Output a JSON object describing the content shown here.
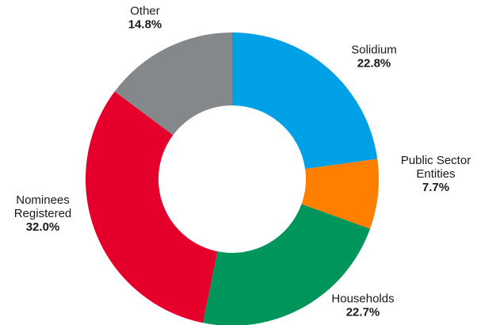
{
  "chart_data": {
    "type": "pie",
    "donut": true,
    "title": "",
    "legend": "none",
    "slices": [
      {
        "name": "Solidium",
        "name_lines": [
          "Solidium"
        ],
        "value": 22.8,
        "value_label": "22.8%",
        "color": "#00a0e6"
      },
      {
        "name": "Public Sector Entities",
        "name_lines": [
          "Public Sector",
          "Entities"
        ],
        "value": 7.7,
        "value_label": "7.7%",
        "color": "#ff7f00"
      },
      {
        "name": "Households",
        "name_lines": [
          "Households"
        ],
        "value": 22.7,
        "value_label": "22.7%",
        "color": "#00955a"
      },
      {
        "name": "Nominees Registered",
        "name_lines": [
          "Nominees",
          "Registered"
        ],
        "value": 32.0,
        "value_label": "32.0%",
        "color": "#e4002b"
      },
      {
        "name": "Other",
        "name_lines": [
          "Other"
        ],
        "value": 14.8,
        "value_label": "14.8%",
        "color": "#85888a"
      }
    ]
  }
}
